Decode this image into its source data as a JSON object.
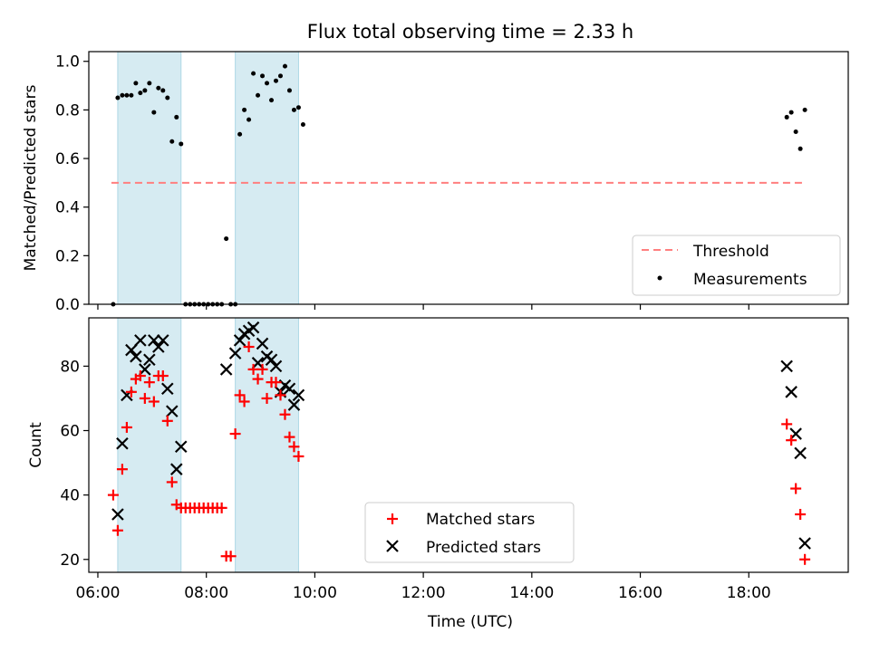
{
  "title": "Flux total observing time = 2.33 h",
  "xlabel": "Time (UTC)",
  "colors": {
    "threshold": "#ff7f7f",
    "measurement": "#000000",
    "matched": "#ff0000",
    "predicted": "#000000",
    "shade": "#add8e6"
  },
  "chart_data": [
    {
      "type": "scatter",
      "panel": "top",
      "title": "Flux total observing time = 2.33 h",
      "xlabel": "",
      "ylabel": "Matched/Predicted stars",
      "x_unit": "hours UTC",
      "xlim": [
        "05:50",
        "19:50"
      ],
      "ylim": [
        0.0,
        1.04
      ],
      "yticks": [
        "0.0",
        "0.2",
        "0.4",
        "0.6",
        "0.8",
        "1.0"
      ],
      "shaded_intervals": [
        [
          "06:22",
          "07:32"
        ],
        [
          "08:32",
          "09:42"
        ]
      ],
      "threshold": {
        "name": "Threshold",
        "value": 0.5,
        "x_range": [
          "06:15",
          "19:00"
        ],
        "style": "dashed"
      },
      "legend": {
        "placement": "lower right",
        "entries": [
          "Threshold",
          "Measurements"
        ]
      },
      "series": [
        {
          "name": "Measurements",
          "marker": "dot",
          "points": [
            [
              "06:17",
              0.0
            ],
            [
              "06:22",
              0.85
            ],
            [
              "06:27",
              0.86
            ],
            [
              "06:32",
              0.86
            ],
            [
              "06:37",
              0.86
            ],
            [
              "06:42",
              0.91
            ],
            [
              "06:47",
              0.87
            ],
            [
              "06:52",
              0.88
            ],
            [
              "06:57",
              0.91
            ],
            [
              "07:02",
              0.79
            ],
            [
              "07:07",
              0.89
            ],
            [
              "07:12",
              0.88
            ],
            [
              "07:17",
              0.85
            ],
            [
              "07:22",
              0.67
            ],
            [
              "07:27",
              0.77
            ],
            [
              "07:32",
              0.66
            ],
            [
              "07:37",
              0.0
            ],
            [
              "07:42",
              0.0
            ],
            [
              "07:47",
              0.0
            ],
            [
              "07:52",
              0.0
            ],
            [
              "07:57",
              0.0
            ],
            [
              "08:02",
              0.0
            ],
            [
              "08:07",
              0.0
            ],
            [
              "08:12",
              0.0
            ],
            [
              "08:17",
              0.0
            ],
            [
              "08:22",
              0.27
            ],
            [
              "08:27",
              0.0
            ],
            [
              "08:32",
              0.0
            ],
            [
              "08:37",
              0.7
            ],
            [
              "08:42",
              0.8
            ],
            [
              "08:47",
              0.76
            ],
            [
              "08:52",
              0.95
            ],
            [
              "08:57",
              0.86
            ],
            [
              "09:02",
              0.94
            ],
            [
              "09:07",
              0.91
            ],
            [
              "09:12",
              0.84
            ],
            [
              "09:17",
              0.92
            ],
            [
              "09:22",
              0.94
            ],
            [
              "09:27",
              0.98
            ],
            [
              "09:32",
              0.88
            ],
            [
              "09:37",
              0.8
            ],
            [
              "09:42",
              0.81
            ],
            [
              "09:47",
              0.74
            ],
            [
              "18:42",
              0.77
            ],
            [
              "18:47",
              0.79
            ],
            [
              "18:52",
              0.71
            ],
            [
              "18:57",
              0.64
            ],
            [
              "19:02",
              0.8
            ]
          ]
        }
      ]
    },
    {
      "type": "scatter",
      "panel": "bottom",
      "xlabel": "Time (UTC)",
      "ylabel": "Count",
      "x_unit": "hours UTC",
      "xlim": [
        "05:50",
        "19:50"
      ],
      "ylim": [
        16,
        95
      ],
      "xticks": [
        "06:00",
        "08:00",
        "10:00",
        "12:00",
        "14:00",
        "16:00",
        "18:00"
      ],
      "yticks": [
        "20",
        "40",
        "60",
        "80"
      ],
      "shaded_intervals": [
        [
          "06:22",
          "07:32"
        ],
        [
          "08:32",
          "09:42"
        ]
      ],
      "legend": {
        "placement": "lower center",
        "entries": [
          "Matched stars",
          "Predicted stars"
        ]
      },
      "series": [
        {
          "name": "Matched stars",
          "marker": "plus",
          "points": [
            [
              "06:17",
              40
            ],
            [
              "06:22",
              29
            ],
            [
              "06:27",
              48
            ],
            [
              "06:32",
              61
            ],
            [
              "06:37",
              72
            ],
            [
              "06:42",
              76
            ],
            [
              "06:47",
              77
            ],
            [
              "06:52",
              70
            ],
            [
              "06:57",
              75
            ],
            [
              "07:02",
              69
            ],
            [
              "07:07",
              77
            ],
            [
              "07:12",
              77
            ],
            [
              "07:17",
              63
            ],
            [
              "07:22",
              44
            ],
            [
              "07:27",
              37
            ],
            [
              "07:32",
              36
            ],
            [
              "07:37",
              36
            ],
            [
              "07:42",
              36
            ],
            [
              "07:47",
              36
            ],
            [
              "07:52",
              36
            ],
            [
              "07:57",
              36
            ],
            [
              "08:02",
              36
            ],
            [
              "08:07",
              36
            ],
            [
              "08:12",
              36
            ],
            [
              "08:17",
              36
            ],
            [
              "08:22",
              21
            ],
            [
              "08:27",
              21
            ],
            [
              "08:32",
              59
            ],
            [
              "08:37",
              71
            ],
            [
              "08:42",
              69
            ],
            [
              "08:47",
              86
            ],
            [
              "08:52",
              79
            ],
            [
              "08:57",
              76
            ],
            [
              "09:02",
              79
            ],
            [
              "09:07",
              70
            ],
            [
              "09:12",
              75
            ],
            [
              "09:17",
              75
            ],
            [
              "09:22",
              71
            ],
            [
              "09:27",
              65
            ],
            [
              "09:32",
              58
            ],
            [
              "09:37",
              55
            ],
            [
              "09:42",
              52
            ],
            [
              "18:42",
              62
            ],
            [
              "18:47",
              57
            ],
            [
              "18:52",
              42
            ],
            [
              "18:57",
              34
            ],
            [
              "19:02",
              20
            ]
          ]
        },
        {
          "name": "Predicted stars",
          "marker": "x",
          "points": [
            [
              "06:22",
              34
            ],
            [
              "06:27",
              56
            ],
            [
              "06:32",
              71
            ],
            [
              "06:37",
              85
            ],
            [
              "06:42",
              83
            ],
            [
              "06:47",
              88
            ],
            [
              "06:52",
              79
            ],
            [
              "06:57",
              82
            ],
            [
              "07:02",
              88
            ],
            [
              "07:07",
              86
            ],
            [
              "07:12",
              88
            ],
            [
              "07:17",
              73
            ],
            [
              "07:22",
              66
            ],
            [
              "07:27",
              48
            ],
            [
              "07:32",
              55
            ],
            [
              "08:22",
              79
            ],
            [
              "08:32",
              84
            ],
            [
              "08:37",
              88
            ],
            [
              "08:42",
              90
            ],
            [
              "08:47",
              91
            ],
            [
              "08:52",
              92
            ],
            [
              "08:57",
              81
            ],
            [
              "09:02",
              87
            ],
            [
              "09:07",
              83
            ],
            [
              "09:12",
              82
            ],
            [
              "09:17",
              80
            ],
            [
              "09:22",
              72
            ],
            [
              "09:27",
              74
            ],
            [
              "09:32",
              73
            ],
            [
              "09:37",
              68
            ],
            [
              "09:42",
              71
            ],
            [
              "18:42",
              80
            ],
            [
              "18:47",
              72
            ],
            [
              "18:52",
              59
            ],
            [
              "18:57",
              53
            ],
            [
              "19:02",
              25
            ]
          ]
        }
      ]
    }
  ]
}
